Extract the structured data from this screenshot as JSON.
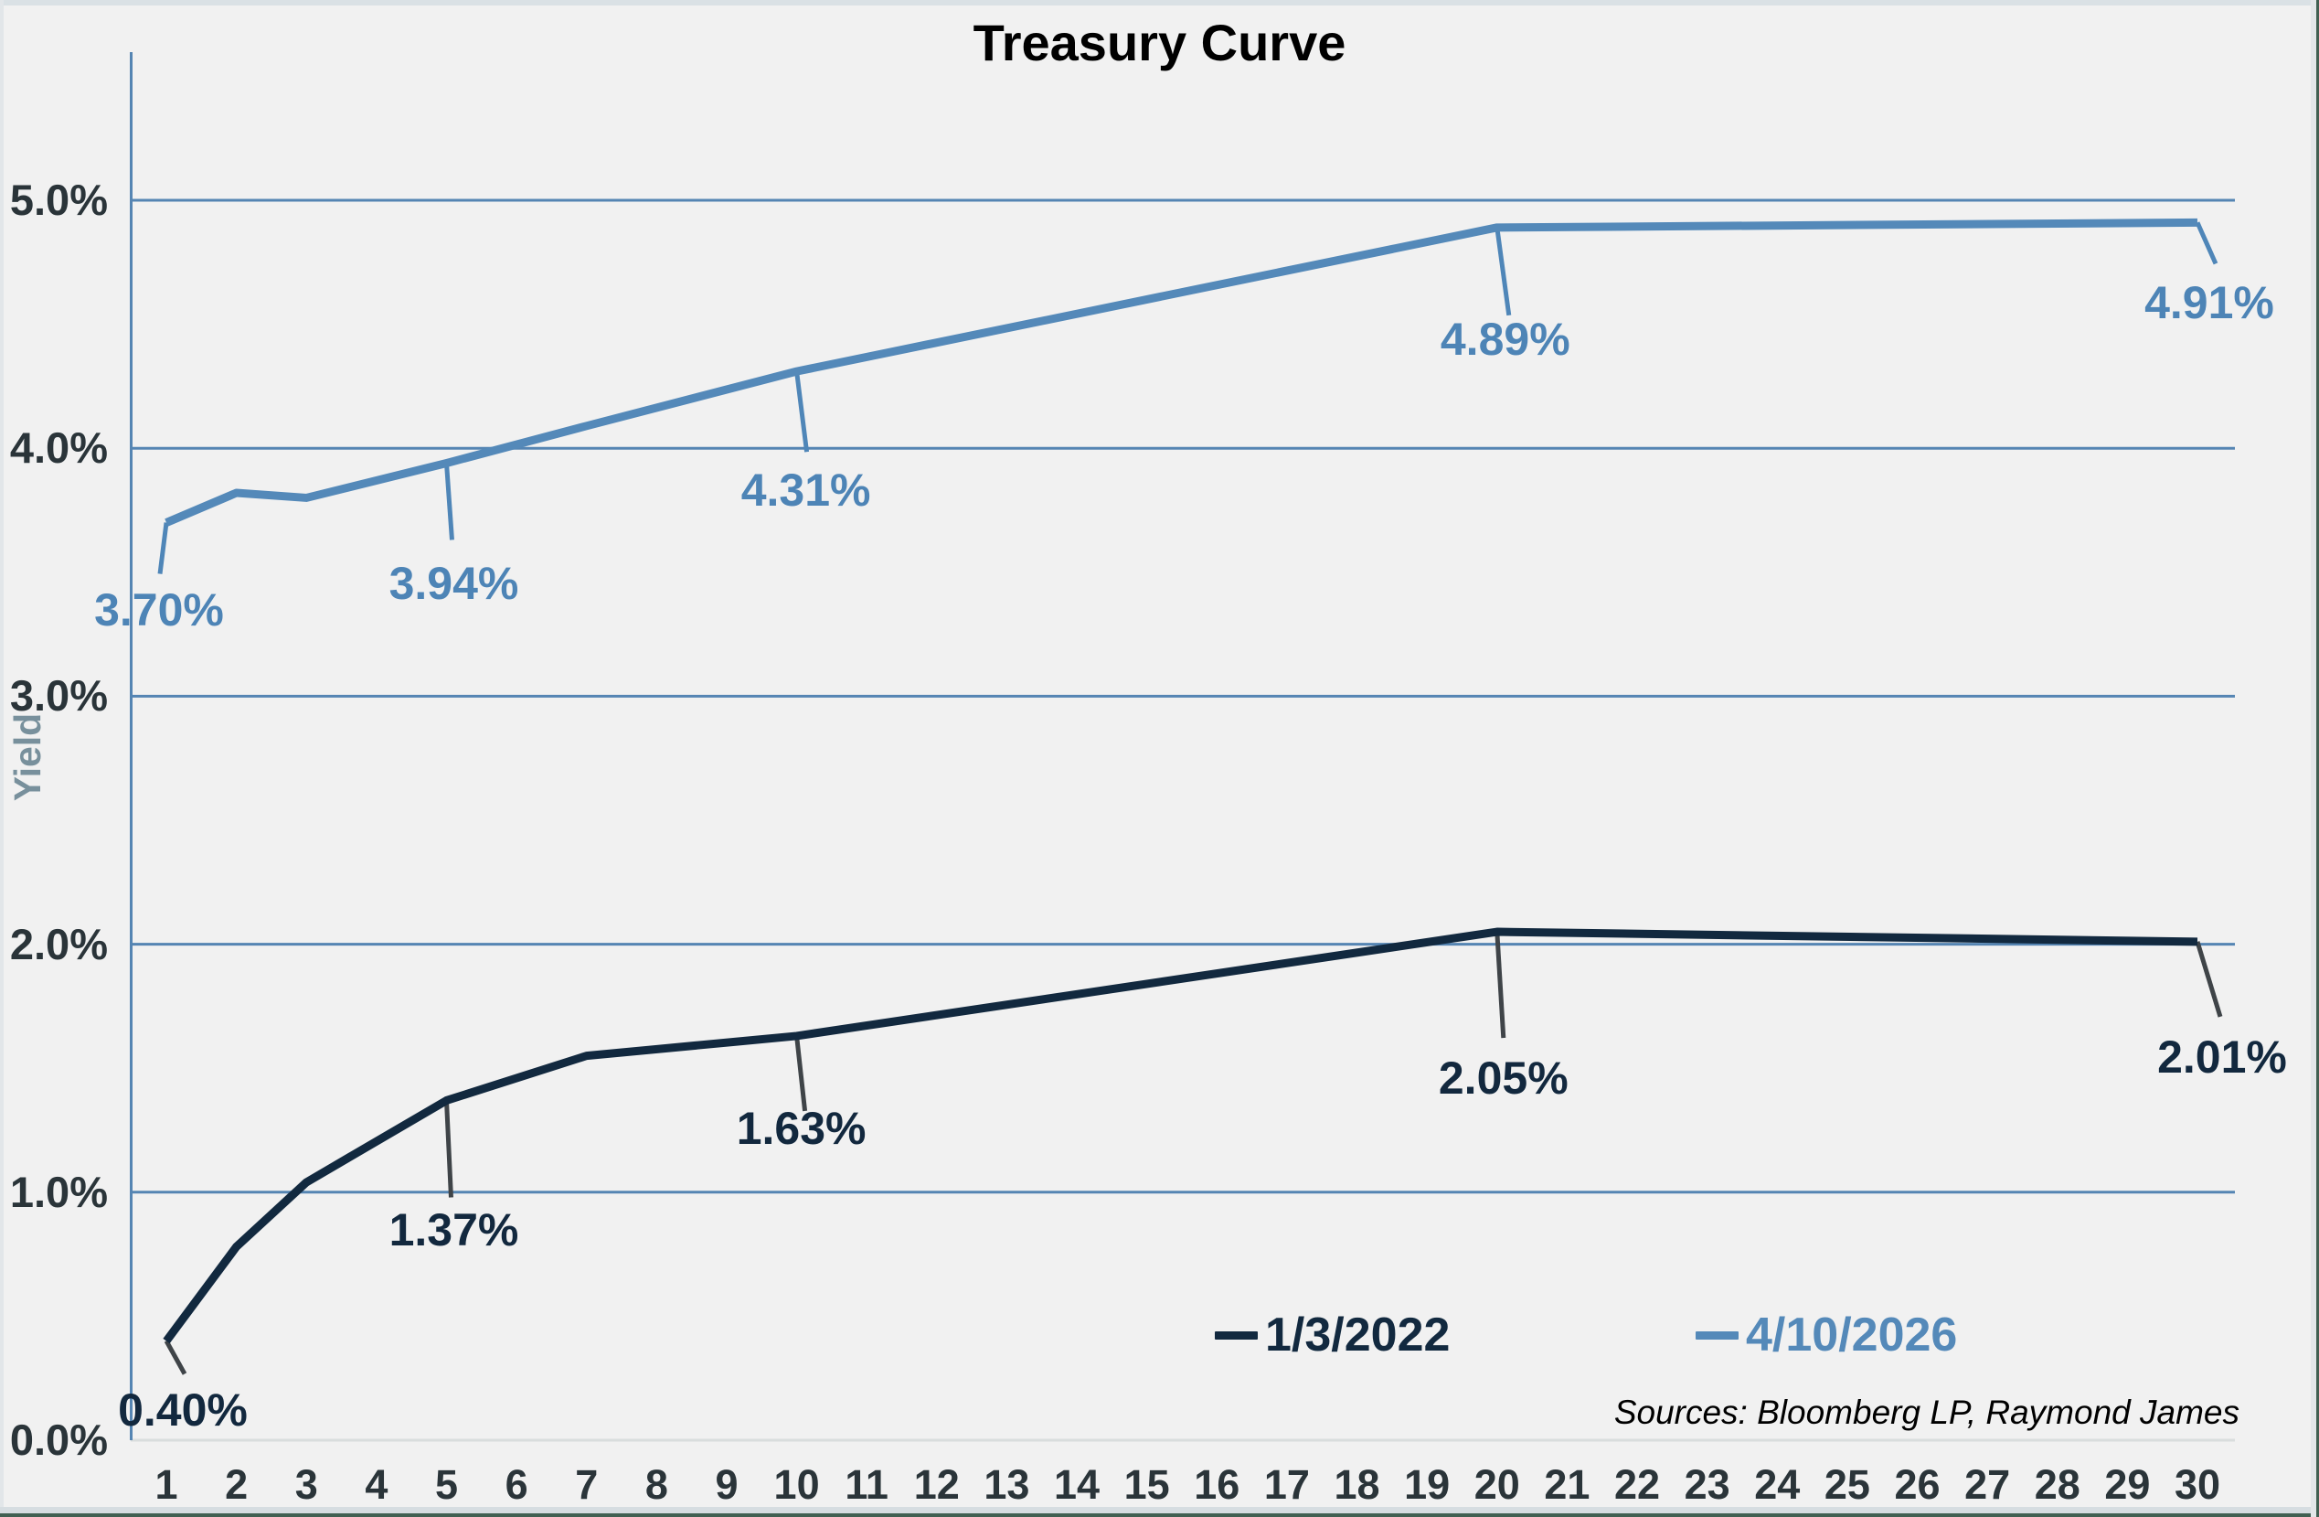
{
  "chart_data": {
    "type": "line",
    "title": "Treasury Curve",
    "xlabel": "",
    "ylabel": "Yield",
    "x": [
      1,
      2,
      3,
      5,
      7,
      10,
      20,
      30
    ],
    "series": [
      {
        "name": "1/3/2022",
        "color": "#12293f",
        "leader_color": "#3f4448",
        "label_color": "#12283e",
        "values": [
          0.4,
          0.78,
          1.04,
          1.37,
          1.55,
          1.63,
          2.05,
          2.01
        ],
        "labels": [
          {
            "x": 1,
            "v": 0.4,
            "text": "0.40%",
            "ex": 20,
            "ey": 36,
            "lx": 18,
            "ly": 75
          },
          {
            "x": 5,
            "v": 1.37,
            "text": "1.37%",
            "ex": 5,
            "ey": 106,
            "lx": 8,
            "ly": 142
          },
          {
            "x": 10,
            "v": 1.63,
            "text": "1.63%",
            "ex": 9,
            "ey": 82,
            "lx": 5,
            "ly": 101
          },
          {
            "x": 20,
            "v": 2.05,
            "text": "2.05%",
            "ex": 7,
            "ey": 116,
            "lx": 7,
            "ly": 160
          },
          {
            "x": 30,
            "v": 2.01,
            "text": "2.01%",
            "ex": 25,
            "ey": 82,
            "lx": 27,
            "ly": 126
          }
        ]
      },
      {
        "name": "4/10/2026",
        "color": "#5489b9",
        "leader_color": "#4f86b8",
        "label_color": "#4d84b6",
        "values": [
          3.7,
          3.82,
          3.8,
          3.94,
          4.09,
          4.31,
          4.89,
          4.91
        ],
        "labels": [
          {
            "x": 1,
            "v": 3.7,
            "text": "3.70%",
            "ex": -7,
            "ey": 56,
            "lx": -8,
            "ly": 95
          },
          {
            "x": 5,
            "v": 3.94,
            "text": "3.94%",
            "ex": 6,
            "ey": 84,
            "lx": 8,
            "ly": 132
          },
          {
            "x": 10,
            "v": 4.31,
            "text": "4.31%",
            "ex": 11,
            "ey": 88,
            "lx": 10,
            "ly": 130
          },
          {
            "x": 20,
            "v": 4.89,
            "text": "4.89%",
            "ex": 13,
            "ey": 96,
            "lx": 9,
            "ly": 122
          },
          {
            "x": 30,
            "v": 4.91,
            "text": "4.91%",
            "ex": 20,
            "ey": 45,
            "lx": 13,
            "ly": 88
          }
        ]
      }
    ],
    "xticks": [
      "1",
      "2",
      "3",
      "4",
      "5",
      "6",
      "7",
      "8",
      "9",
      "10",
      "11",
      "12",
      "13",
      "14",
      "15",
      "16",
      "17",
      "18",
      "19",
      "20",
      "21",
      "22",
      "23",
      "24",
      "25",
      "26",
      "27",
      "28",
      "29",
      "30"
    ],
    "yticks": [
      {
        "value": 5,
        "label": "5.0%"
      },
      {
        "value": 4,
        "label": "4.0%"
      },
      {
        "value": 3,
        "label": "3.0%"
      },
      {
        "value": 2,
        "label": "2.0%"
      },
      {
        "value": 1,
        "label": "1.0%"
      },
      {
        "value": 0,
        "label": "0.0%"
      }
    ],
    "ylim": [
      0,
      5.5
    ],
    "grid": "horizontal",
    "grid_color": "#5585b3",
    "axis_color": "#5585b3",
    "baseline_color": "#d9dddd",
    "legend_position": "inside-bottom-right",
    "legend": {
      "items": [
        {
          "label": "1/3/2022",
          "color": "#12293f"
        },
        {
          "label": "4/10/2026",
          "color": "#5489b9"
        }
      ]
    },
    "source_note": "Sources: Bloomberg LP, Raymond James"
  }
}
